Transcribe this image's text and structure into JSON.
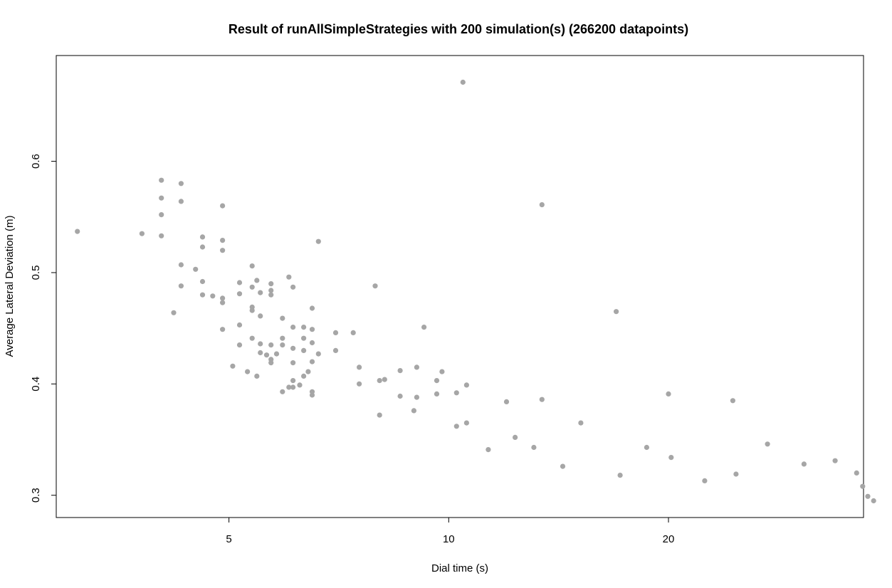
{
  "chart_data": {
    "type": "scatter",
    "title": "Result of runAllSimpleStrategies with 200 simulation(s) (266200 datapoints)",
    "xlabel": "Dial time (s)",
    "ylabel": "Average Lateral Deviation (m)",
    "x_scale": "log",
    "xlim": [
      2.9,
      37
    ],
    "ylim": [
      0.28,
      0.695
    ],
    "x_ticks": [
      5,
      10,
      20
    ],
    "y_ticks": [
      0.3,
      0.4,
      0.5,
      0.6
    ],
    "grid": false,
    "legend": "none",
    "point_color": "#a6a6a6",
    "points": [
      [
        3.1,
        0.537
      ],
      [
        3.8,
        0.535
      ],
      [
        4.04,
        0.583
      ],
      [
        4.04,
        0.567
      ],
      [
        4.04,
        0.552
      ],
      [
        4.04,
        0.533
      ],
      [
        4.2,
        0.464
      ],
      [
        4.3,
        0.58
      ],
      [
        4.3,
        0.564
      ],
      [
        4.3,
        0.507
      ],
      [
        4.3,
        0.488
      ],
      [
        4.5,
        0.503
      ],
      [
        4.6,
        0.532
      ],
      [
        4.6,
        0.523
      ],
      [
        4.6,
        0.492
      ],
      [
        4.6,
        0.48
      ],
      [
        4.75,
        0.479
      ],
      [
        4.9,
        0.56
      ],
      [
        4.9,
        0.529
      ],
      [
        4.9,
        0.52
      ],
      [
        4.9,
        0.477
      ],
      [
        4.9,
        0.473
      ],
      [
        4.9,
        0.449
      ],
      [
        5.06,
        0.416
      ],
      [
        5.17,
        0.491
      ],
      [
        5.17,
        0.481
      ],
      [
        5.17,
        0.453
      ],
      [
        5.17,
        0.435
      ],
      [
        5.3,
        0.411
      ],
      [
        5.38,
        0.506
      ],
      [
        5.38,
        0.487
      ],
      [
        5.38,
        0.469
      ],
      [
        5.38,
        0.466
      ],
      [
        5.38,
        0.441
      ],
      [
        5.46,
        0.407
      ],
      [
        5.46,
        0.493
      ],
      [
        5.52,
        0.482
      ],
      [
        5.52,
        0.461
      ],
      [
        5.52,
        0.436
      ],
      [
        5.52,
        0.428
      ],
      [
        5.63,
        0.426
      ],
      [
        5.71,
        0.49
      ],
      [
        5.71,
        0.484
      ],
      [
        5.71,
        0.48
      ],
      [
        5.71,
        0.435
      ],
      [
        5.71,
        0.422
      ],
      [
        5.71,
        0.419
      ],
      [
        5.81,
        0.427
      ],
      [
        5.92,
        0.459
      ],
      [
        5.92,
        0.441
      ],
      [
        5.92,
        0.435
      ],
      [
        5.92,
        0.393
      ],
      [
        6.04,
        0.496
      ],
      [
        6.04,
        0.397
      ],
      [
        6.12,
        0.487
      ],
      [
        6.12,
        0.451
      ],
      [
        6.12,
        0.432
      ],
      [
        6.12,
        0.419
      ],
      [
        6.12,
        0.403
      ],
      [
        6.12,
        0.397
      ],
      [
        6.25,
        0.399
      ],
      [
        6.33,
        0.451
      ],
      [
        6.33,
        0.441
      ],
      [
        6.33,
        0.43
      ],
      [
        6.33,
        0.407
      ],
      [
        6.42,
        0.411
      ],
      [
        6.5,
        0.468
      ],
      [
        6.5,
        0.449
      ],
      [
        6.5,
        0.437
      ],
      [
        6.5,
        0.42
      ],
      [
        6.5,
        0.393
      ],
      [
        6.5,
        0.39
      ],
      [
        6.63,
        0.528
      ],
      [
        6.63,
        0.427
      ],
      [
        7.0,
        0.446
      ],
      [
        7.0,
        0.43
      ],
      [
        7.4,
        0.446
      ],
      [
        7.54,
        0.415
      ],
      [
        7.54,
        0.4
      ],
      [
        7.93,
        0.488
      ],
      [
        8.04,
        0.403
      ],
      [
        8.04,
        0.372
      ],
      [
        8.17,
        0.404
      ],
      [
        8.58,
        0.412
      ],
      [
        8.58,
        0.389
      ],
      [
        8.96,
        0.376
      ],
      [
        9.04,
        0.415
      ],
      [
        9.04,
        0.388
      ],
      [
        9.25,
        0.451
      ],
      [
        9.63,
        0.403
      ],
      [
        9.63,
        0.391
      ],
      [
        9.79,
        0.411
      ],
      [
        10.25,
        0.392
      ],
      [
        10.25,
        0.362
      ],
      [
        10.58,
        0.399
      ],
      [
        10.58,
        0.365
      ],
      [
        10.46,
        0.671
      ],
      [
        11.33,
        0.341
      ],
      [
        12.0,
        0.384
      ],
      [
        12.33,
        0.352
      ],
      [
        13.08,
        0.343
      ],
      [
        13.42,
        0.386
      ],
      [
        13.42,
        0.561
      ],
      [
        14.33,
        0.326
      ],
      [
        15.17,
        0.365
      ],
      [
        16.96,
        0.465
      ],
      [
        17.17,
        0.318
      ],
      [
        18.67,
        0.343
      ],
      [
        20.0,
        0.391
      ],
      [
        20.17,
        0.334
      ],
      [
        22.42,
        0.313
      ],
      [
        24.5,
        0.385
      ],
      [
        24.75,
        0.319
      ],
      [
        27.33,
        0.346
      ],
      [
        30.67,
        0.328
      ],
      [
        33.83,
        0.331
      ],
      [
        36.2,
        0.32
      ],
      [
        36.9,
        0.308
      ],
      [
        37.5,
        0.299
      ],
      [
        38.2,
        0.295
      ]
    ]
  }
}
